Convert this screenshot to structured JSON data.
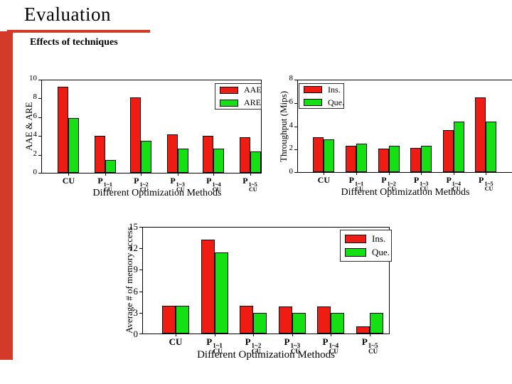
{
  "slide": {
    "title": "Evaluation",
    "subtitle": "Effects of techniques"
  },
  "colors": {
    "accent_red": "#d43a2a",
    "bar_red": "#ee1c12",
    "bar_green": "#14e014",
    "frame": "#000000"
  },
  "chart_data": [
    {
      "type": "bar",
      "ylabel": "AAE & ARE",
      "xlabel": "Different Optimization Methods",
      "categories": [
        {
          "base": "CU"
        },
        {
          "base": "P",
          "sup": "1~1",
          "sub": "CU"
        },
        {
          "base": "P",
          "sup": "1~2",
          "sub": "CU"
        },
        {
          "base": "P",
          "sup": "1~3",
          "sub": "CU"
        },
        {
          "base": "P",
          "sup": "1~4",
          "sub": "CU"
        },
        {
          "base": "P",
          "sup": "1~5",
          "sub": "CU"
        }
      ],
      "ylim": [
        0,
        10
      ],
      "yticks": [
        0,
        2,
        4,
        6,
        8,
        10
      ],
      "grid": false,
      "legend_position": "top-right",
      "series": [
        {
          "name": "AAE",
          "color": "bar_red",
          "values": [
            9.2,
            4.0,
            8.1,
            4.1,
            4.0,
            3.8
          ]
        },
        {
          "name": "ARE",
          "color": "bar_green",
          "values": [
            5.9,
            1.4,
            3.4,
            2.6,
            2.6,
            2.3
          ]
        }
      ]
    },
    {
      "type": "bar",
      "ylabel": "Throughput (Mips)",
      "xlabel": "Different Optimization Methods",
      "categories": [
        {
          "base": "CU"
        },
        {
          "base": "P",
          "sup": "1~1",
          "sub": "CU"
        },
        {
          "base": "P",
          "sup": "1~2",
          "sub": "CU"
        },
        {
          "base": "P",
          "sup": "1~3",
          "sub": "CU"
        },
        {
          "base": "P",
          "sup": "1~4",
          "sub": "CU"
        },
        {
          "base": "P",
          "sup": "1~5",
          "sub": "CU"
        }
      ],
      "ylim": [
        0,
        8
      ],
      "yticks": [
        0,
        2,
        4,
        6,
        8
      ],
      "grid": false,
      "legend_position": "top-left",
      "series": [
        {
          "name": "Ins.",
          "color": "bar_red",
          "values": [
            3.0,
            2.3,
            2.05,
            2.1,
            3.6,
            6.45
          ]
        },
        {
          "name": "Que.",
          "color": "bar_green",
          "values": [
            2.85,
            2.45,
            2.25,
            2.3,
            4.35,
            4.35
          ]
        }
      ]
    },
    {
      "type": "bar",
      "ylabel": "Average # of memory access",
      "xlabel": "Different Optimization Methods",
      "categories": [
        {
          "base": "CU"
        },
        {
          "base": "P",
          "sup": "1~1",
          "sub": "CU"
        },
        {
          "base": "P",
          "sup": "1~2",
          "sub": "CU"
        },
        {
          "base": "P",
          "sup": "1~3",
          "sub": "CU"
        },
        {
          "base": "P",
          "sup": "1~4",
          "sub": "CU"
        },
        {
          "base": "P",
          "sup": "1~5",
          "sub": "CU"
        }
      ],
      "ylim": [
        0,
        15
      ],
      "yticks": [
        0,
        3,
        6,
        9,
        12,
        15
      ],
      "grid": false,
      "legend_position": "top-right",
      "series": [
        {
          "name": "Ins.",
          "color": "bar_red",
          "values": [
            3.9,
            13.2,
            3.85,
            3.75,
            3.75,
            1.0
          ]
        },
        {
          "name": "Que.",
          "color": "bar_green",
          "values": [
            3.9,
            11.4,
            2.9,
            2.85,
            2.9,
            2.9
          ]
        }
      ]
    }
  ]
}
